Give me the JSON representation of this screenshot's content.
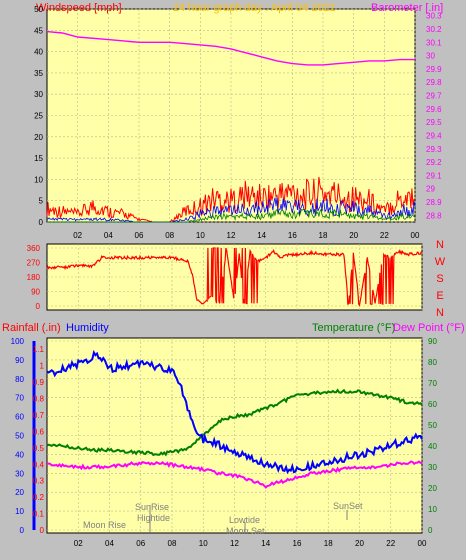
{
  "top_title": "24 hour graph day : April 04 2021",
  "chart_data": [
    {
      "type": "line",
      "title": "24 hour graph day : April 04 2021",
      "ylabel_left": "Windspeed [mph]",
      "ylabel_right": "Barometer [.in]",
      "x_ticks": [
        "02",
        "04",
        "06",
        "08",
        "10",
        "12",
        "14",
        "16",
        "18",
        "20",
        "22",
        "00"
      ],
      "xlim": [
        0,
        24
      ],
      "y_left_ticks": [
        0,
        5,
        10,
        15,
        20,
        25,
        30,
        35,
        40,
        45,
        50
      ],
      "ylim_left": [
        0,
        50
      ],
      "y_right_ticks": [
        "28.8",
        "28.9",
        "29",
        "29.1",
        "29.2",
        "29.3",
        "29.4",
        "29.5",
        "29.6",
        "29.7",
        "29.8",
        "29.9",
        "30",
        "30.1",
        "30.2",
        "30.3"
      ],
      "ylim_right": [
        28.75,
        30.35
      ],
      "colors": {
        "gust": "#ff0000",
        "speed": "#0000ff",
        "average": "#008000",
        "barometer": "#ff00ff"
      },
      "series": [
        {
          "axis": "right",
          "x": [
            0,
            1,
            2,
            4,
            6,
            8,
            9,
            10,
            11,
            12,
            13,
            14,
            15,
            16,
            17,
            18,
            19,
            20,
            21,
            22,
            23,
            24
          ],
          "values": [
            30.18,
            30.17,
            30.14,
            30.12,
            30.1,
            30.1,
            30.09,
            30.08,
            30.07,
            30.05,
            30.02,
            29.99,
            29.96,
            29.94,
            29.93,
            29.93,
            29.94,
            29.95,
            29.96,
            29.96,
            29.97,
            29.97
          ]
        },
        {
          "axis": "left",
          "x": [
            0,
            1,
            2,
            3,
            4,
            5,
            6,
            7,
            8,
            9,
            10,
            11,
            12,
            13,
            14,
            15,
            16,
            17,
            18,
            19,
            20,
            21,
            22,
            23,
            24
          ],
          "values": [
            5,
            4,
            3,
            6,
            4,
            3,
            1,
            0,
            0,
            4,
            6,
            9,
            8,
            10,
            9,
            10,
            11,
            10,
            11,
            10,
            9,
            8,
            4,
            9,
            10
          ]
        },
        {
          "axis": "left",
          "x": [
            0,
            2,
            4,
            6,
            8,
            9,
            10,
            11,
            12,
            13,
            14,
            15,
            16,
            17,
            18,
            19,
            20,
            21,
            22,
            23,
            24
          ],
          "values": [
            1,
            1,
            1,
            0,
            0,
            1,
            3,
            4,
            4,
            5,
            5,
            6,
            6,
            5,
            6,
            5,
            5,
            4,
            2,
            4,
            5
          ]
        },
        {
          "axis": "left",
          "x": [
            0,
            2,
            4,
            6,
            8,
            9,
            10,
            11,
            12,
            13,
            14,
            15,
            16,
            17,
            18,
            19,
            20,
            21,
            22,
            23,
            24
          ],
          "values": [
            0,
            0,
            0,
            0,
            0,
            0,
            1,
            2,
            2,
            2,
            2,
            3,
            3,
            3,
            3,
            3,
            2,
            2,
            1,
            2,
            2
          ]
        }
      ]
    },
    {
      "type": "line",
      "y_ticks": [
        0,
        90,
        180,
        270,
        360
      ],
      "ylim": [
        0,
        360
      ],
      "right_labels": [
        "N",
        "W",
        "S",
        "E",
        "N"
      ],
      "x_ticks": [
        "02",
        "04",
        "06",
        "08",
        "10",
        "12",
        "14",
        "16",
        "18",
        "20",
        "22",
        "00"
      ],
      "xlim": [
        0,
        24
      ],
      "color": "#ff0000",
      "series": [
        {
          "x": [
            0,
            1,
            2,
            3,
            3.5,
            4,
            5,
            6,
            7,
            8,
            9,
            9.3,
            9.6,
            10,
            10.5,
            11,
            11.5,
            12,
            12.3,
            12.6,
            13,
            13.5,
            14,
            14.5,
            15,
            15.5,
            16,
            17,
            18,
            19,
            19.3,
            19.6,
            20,
            20.5,
            21,
            21.5,
            22,
            22.5,
            23,
            24
          ],
          "values": [
            240,
            240,
            250,
            250,
            300,
            300,
            300,
            300,
            300,
            300,
            280,
            200,
            30,
            20,
            60,
            30,
            340,
            20,
            330,
            30,
            340,
            280,
            300,
            340,
            300,
            320,
            320,
            330,
            320,
            320,
            10,
            340,
            10,
            300,
            20,
            320,
            300,
            340,
            320,
            330
          ]
        }
      ]
    },
    {
      "type": "line",
      "ylabel_left_1": "Rainfall (.in)",
      "ylabel_left_2": "Humidity",
      "ylabel_right_1": "Temperature (°F)",
      "ylabel_right_2": "Dew Point (°F)",
      "x_ticks": [
        "02",
        "04",
        "06",
        "08",
        "10",
        "12",
        "14",
        "16",
        "18",
        "20",
        "22",
        "00"
      ],
      "xlim": [
        0,
        24
      ],
      "humidity_ticks": [
        0,
        10,
        20,
        30,
        40,
        50,
        60,
        70,
        80,
        90,
        100
      ],
      "rain_ticks": [
        "0",
        "0.1",
        "0.2",
        "0.3",
        "0.4",
        "0.5",
        "0.6",
        "0.7",
        "0.8",
        "0.9",
        "1",
        "1.1"
      ],
      "temp_ticks": [
        0,
        10,
        20,
        30,
        40,
        50,
        60,
        70,
        80,
        90
      ],
      "ylim": [
        0,
        100
      ],
      "colors": {
        "humidity": "#0000ff",
        "temperature": "#008000",
        "dewpoint": "#ff00ff",
        "rain": "#0000ff"
      },
      "series": [
        {
          "x": [
            0,
            1,
            2,
            3,
            3.5,
            4,
            5,
            6,
            7,
            8,
            8.5,
            9,
            9.5,
            10,
            11,
            12,
            13,
            14,
            15,
            16,
            17,
            18,
            19,
            20,
            21,
            22,
            23,
            24
          ],
          "values": [
            82,
            85,
            88,
            92,
            91,
            85,
            87,
            88,
            86,
            85,
            78,
            65,
            52,
            48,
            45,
            42,
            38,
            35,
            33,
            32,
            34,
            36,
            38,
            40,
            42,
            45,
            47,
            50
          ]
        },
        {
          "x": [
            0,
            1,
            2,
            3,
            4,
            5,
            6,
            7,
            8,
            9,
            10,
            11,
            12,
            13,
            14,
            15,
            16,
            17,
            18,
            19,
            20,
            21,
            22,
            23,
            24
          ],
          "values": [
            41,
            40,
            39,
            38,
            38,
            37,
            37,
            36,
            37,
            39,
            45,
            52,
            54,
            55,
            58,
            61,
            64,
            65,
            66,
            66,
            66,
            64,
            63,
            61,
            60
          ]
        },
        {
          "x": [
            0,
            1,
            2,
            3,
            4,
            5,
            6,
            7,
            8,
            9,
            10,
            11,
            12,
            13,
            14,
            15,
            16,
            17,
            18,
            19,
            20,
            21,
            22,
            23,
            24
          ],
          "values": [
            31,
            31,
            30,
            30,
            30,
            31,
            32,
            32,
            31,
            30,
            29,
            27,
            26,
            24,
            21,
            23,
            25,
            27,
            28,
            29,
            30,
            30,
            31,
            32,
            32
          ]
        }
      ]
    }
  ],
  "annotations": {
    "moonrise": "Moon Rise",
    "sunrise": "SunRise",
    "hightide": "Hightide",
    "lowtide": "Lowtide",
    "moonset": "Moon Set",
    "sunset": "SunSet"
  }
}
